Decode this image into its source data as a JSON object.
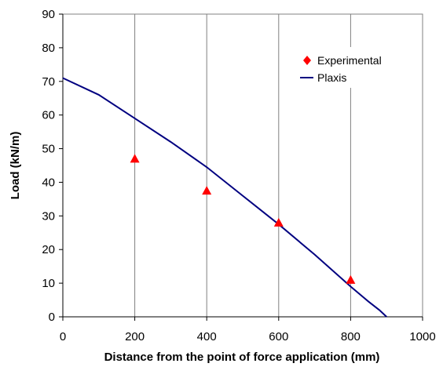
{
  "chart_data": {
    "type": "scatter",
    "xlabel": "Distance from the point of force application (mm)",
    "ylabel": "Load (kN/m)",
    "xlim": [
      0,
      1000
    ],
    "ylim": [
      0,
      90
    ],
    "xticks": [
      0,
      200,
      400,
      600,
      800,
      1000
    ],
    "yticks": [
      0,
      10,
      20,
      30,
      40,
      50,
      60,
      70,
      80,
      90
    ],
    "x_tick_labels": [
      "0",
      "200",
      "400",
      "600",
      "800",
      "1000"
    ],
    "y_tick_labels": [
      "0",
      "10",
      "20",
      "30",
      "40",
      "50",
      "60",
      "70",
      "80",
      "90"
    ],
    "grid": "vertical",
    "legend_position": "top-right",
    "series": [
      {
        "name": "Experimental",
        "kind": "markers",
        "marker": "triangle",
        "color": "#ff0000",
        "x": [
          200,
          400,
          600,
          800
        ],
        "y": [
          47,
          37.5,
          28,
          11
        ]
      },
      {
        "name": "Plaxis",
        "kind": "line",
        "color": "#000080",
        "x": [
          0,
          100,
          200,
          300,
          400,
          500,
          600,
          700,
          800,
          850,
          880,
          900
        ],
        "y": [
          71,
          66,
          59,
          52,
          44.5,
          36,
          27.5,
          18.5,
          9,
          4.5,
          2,
          0
        ]
      }
    ]
  }
}
